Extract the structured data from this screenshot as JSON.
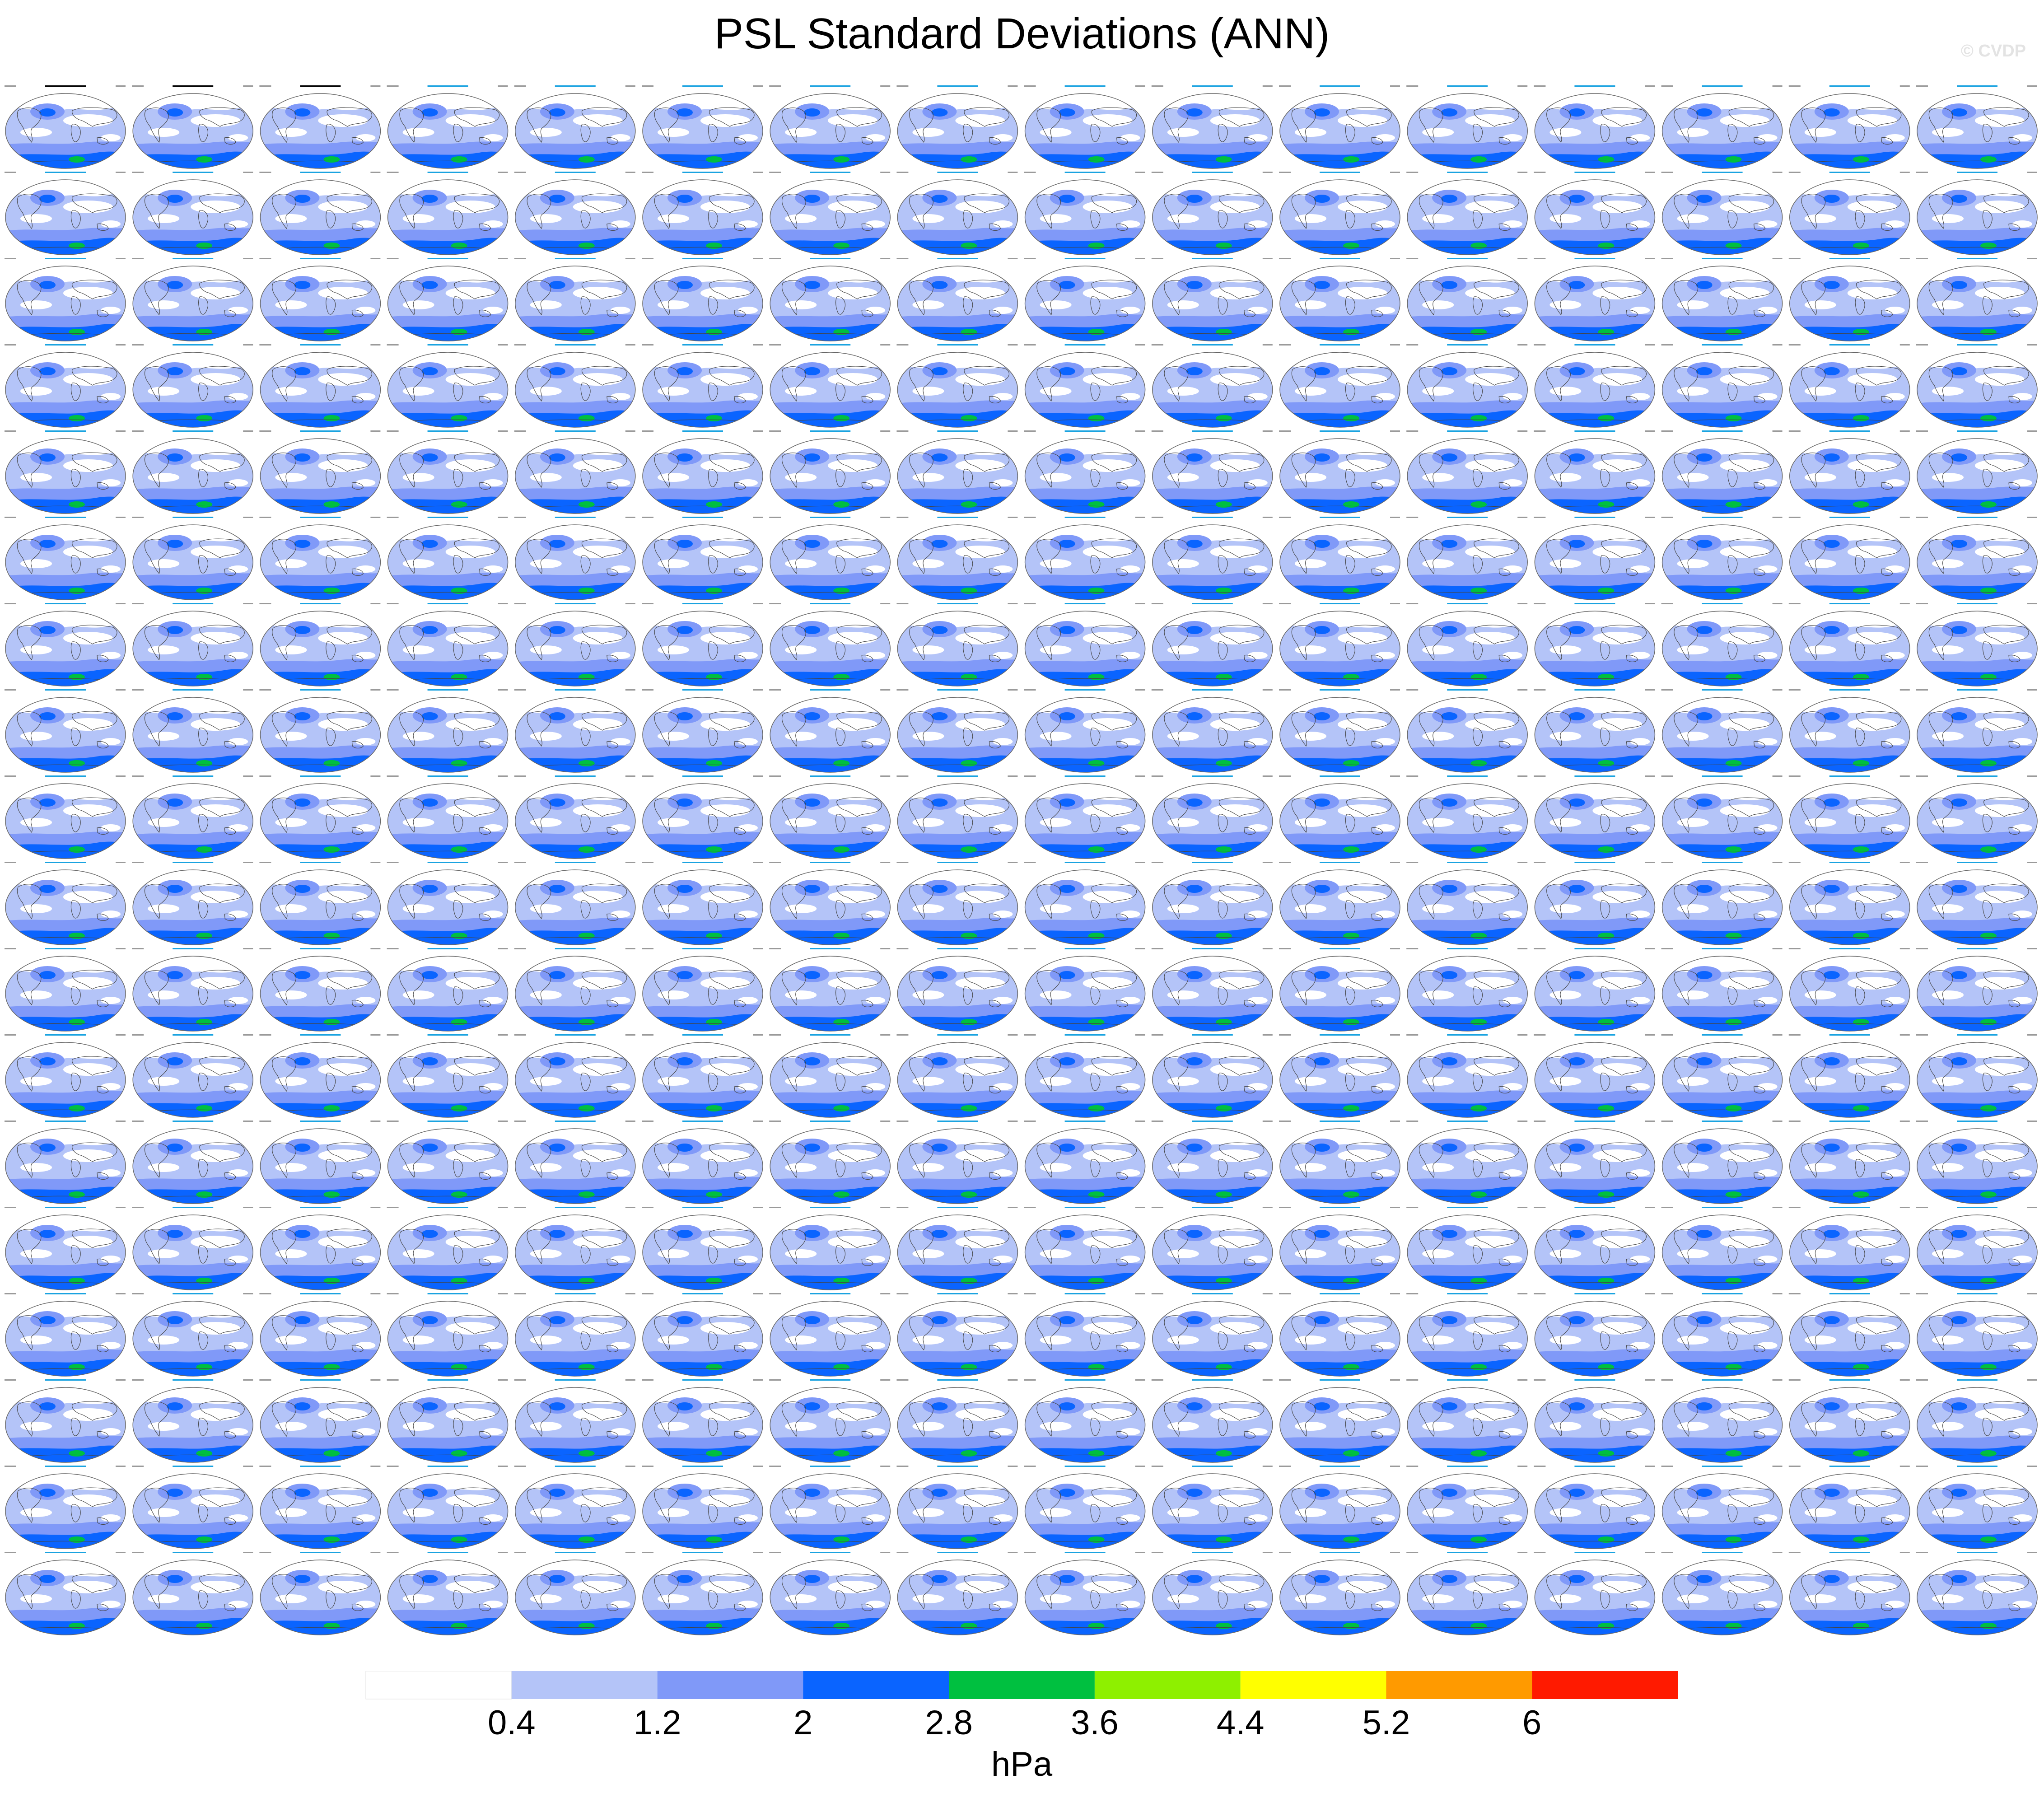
{
  "title": "PSL Standard Deviations (ANN)",
  "watermark": "© CVDP",
  "colors": {
    "land_outline": "#444444",
    "frame": "#666666",
    "obs_label": "#000000",
    "model_label": "#1aa3e0"
  },
  "chart_data": {
    "type": "heatmap",
    "layout": {
      "rows": 18,
      "cols": 16
    },
    "panels_note_obs": [
      "ERA5",
      "ERA20c_ERA5_comb",
      "ERA5_2"
    ],
    "colorbar": {
      "label": "hPa",
      "ticks": [
        "0.4",
        "1.2",
        "2",
        "2.8",
        "3.6",
        "4.4",
        "5.2",
        "6"
      ],
      "levels": [
        0.4,
        1.2,
        2,
        2.8,
        3.6,
        4.4,
        5.2,
        6
      ],
      "colors": [
        "#ffffff",
        "#b4c4f8",
        "#8099f8",
        "#0a64ff",
        "#00c040",
        "#8ef000",
        "#ffff00",
        "#ff9a00",
        "#ff1a00"
      ]
    }
  }
}
